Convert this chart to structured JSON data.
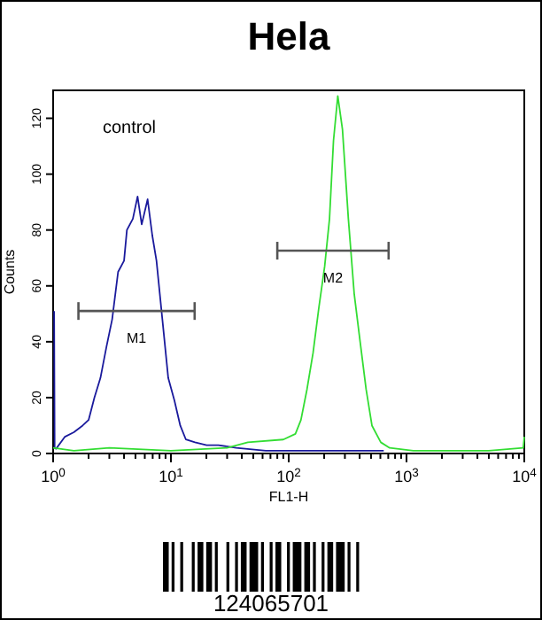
{
  "chart_data": {
    "type": "line",
    "title": "Hela",
    "xlabel": "FL1-H",
    "ylabel": "Counts",
    "log": "x",
    "xlim": [
      1,
      10000
    ],
    "ylim": [
      0,
      130
    ],
    "xticks": [
      {
        "value": 1,
        "label": "10$^{0}$"
      },
      {
        "value": 2,
        "label": null
      },
      {
        "value": 3,
        "label": null
      },
      {
        "value": 4,
        "label": null
      },
      {
        "value": 5,
        "label": null
      },
      {
        "value": 6,
        "label": null
      },
      {
        "value": 7,
        "label": null
      },
      {
        "value": 8,
        "label": null
      },
      {
        "value": 9,
        "label": null
      },
      {
        "value": 10,
        "label": "10$^{1}$"
      },
      {
        "value": 20,
        "label": null
      },
      {
        "value": 30,
        "label": null
      },
      {
        "value": 40,
        "label": null
      },
      {
        "value": 50,
        "label": null
      },
      {
        "value": 60,
        "label": null
      },
      {
        "value": 70,
        "label": null
      },
      {
        "value": 80,
        "label": null
      },
      {
        "value": 90,
        "label": null
      },
      {
        "value": 100,
        "label": "10$^{2}$"
      },
      {
        "value": 200,
        "label": null
      },
      {
        "value": 300,
        "label": null
      },
      {
        "value": 400,
        "label": null
      },
      {
        "value": 500,
        "label": null
      },
      {
        "value": 600,
        "label": null
      },
      {
        "value": 700,
        "label": null
      },
      {
        "value": 800,
        "label": null
      },
      {
        "value": 900,
        "label": null
      },
      {
        "value": 1000,
        "label": "10$^{3}$"
      },
      {
        "value": 2000,
        "label": null
      },
      {
        "value": 3000,
        "label": null
      },
      {
        "value": 4000,
        "label": null
      },
      {
        "value": 5000,
        "label": null
      },
      {
        "value": 6000,
        "label": null
      },
      {
        "value": 7000,
        "label": null
      },
      {
        "value": 8000,
        "label": null
      },
      {
        "value": 9000,
        "label": null
      },
      {
        "value": 10000,
        "label": "10$^{4}$"
      }
    ],
    "yticks": [
      0,
      20,
      40,
      60,
      80,
      100,
      120
    ],
    "annotations": [
      "control",
      "124065701"
    ],
    "series": [
      {
        "color": "#1a1a9c",
        "x": [
          1.02,
          1.03,
          1.06,
          1.26,
          1.5,
          1.78,
          2,
          2.24,
          2.52,
          2.83,
          3.17,
          3.56,
          4,
          4.23,
          4.75,
          5.21,
          5.65,
          6.34,
          6.95,
          7.54,
          8.46,
          9.49,
          10.7,
          12,
          13.4,
          16,
          20.1,
          25.3,
          35.8,
          63.8,
          114,
          641
        ],
        "values": [
          51,
          2,
          1.7,
          6,
          7.6,
          10,
          12,
          20,
          27,
          38,
          48,
          65,
          69,
          80,
          84,
          92,
          82,
          91,
          78,
          69,
          48,
          27,
          19,
          10,
          5,
          4,
          3,
          3,
          2,
          1,
          1,
          1
        ]
      },
      {
        "color": "#33dd33",
        "x": [
          1,
          1.5,
          3,
          10,
          30,
          45,
          90,
          114,
          127,
          143,
          161,
          180,
          202,
          222,
          240,
          261,
          286,
          321,
          360,
          404,
          454,
          509,
          605,
          720,
          1143,
          5000,
          9800,
          10000
        ],
        "values": [
          2,
          1,
          2,
          1,
          2,
          4,
          5,
          7,
          12,
          23,
          36,
          52,
          67,
          84,
          112,
          128,
          116,
          84,
          57,
          40,
          23,
          10,
          4,
          2,
          1,
          1,
          2,
          6
        ]
      },
      {
        "name": "M1",
        "color": "#555555",
        "x": [
          1.64,
          15.9
        ],
        "values": [
          51,
          51
        ]
      },
      {
        "name": "M2",
        "color": "#555555",
        "x": [
          80,
          705
        ],
        "values": [
          72.6,
          72.6
        ]
      }
    ]
  }
}
